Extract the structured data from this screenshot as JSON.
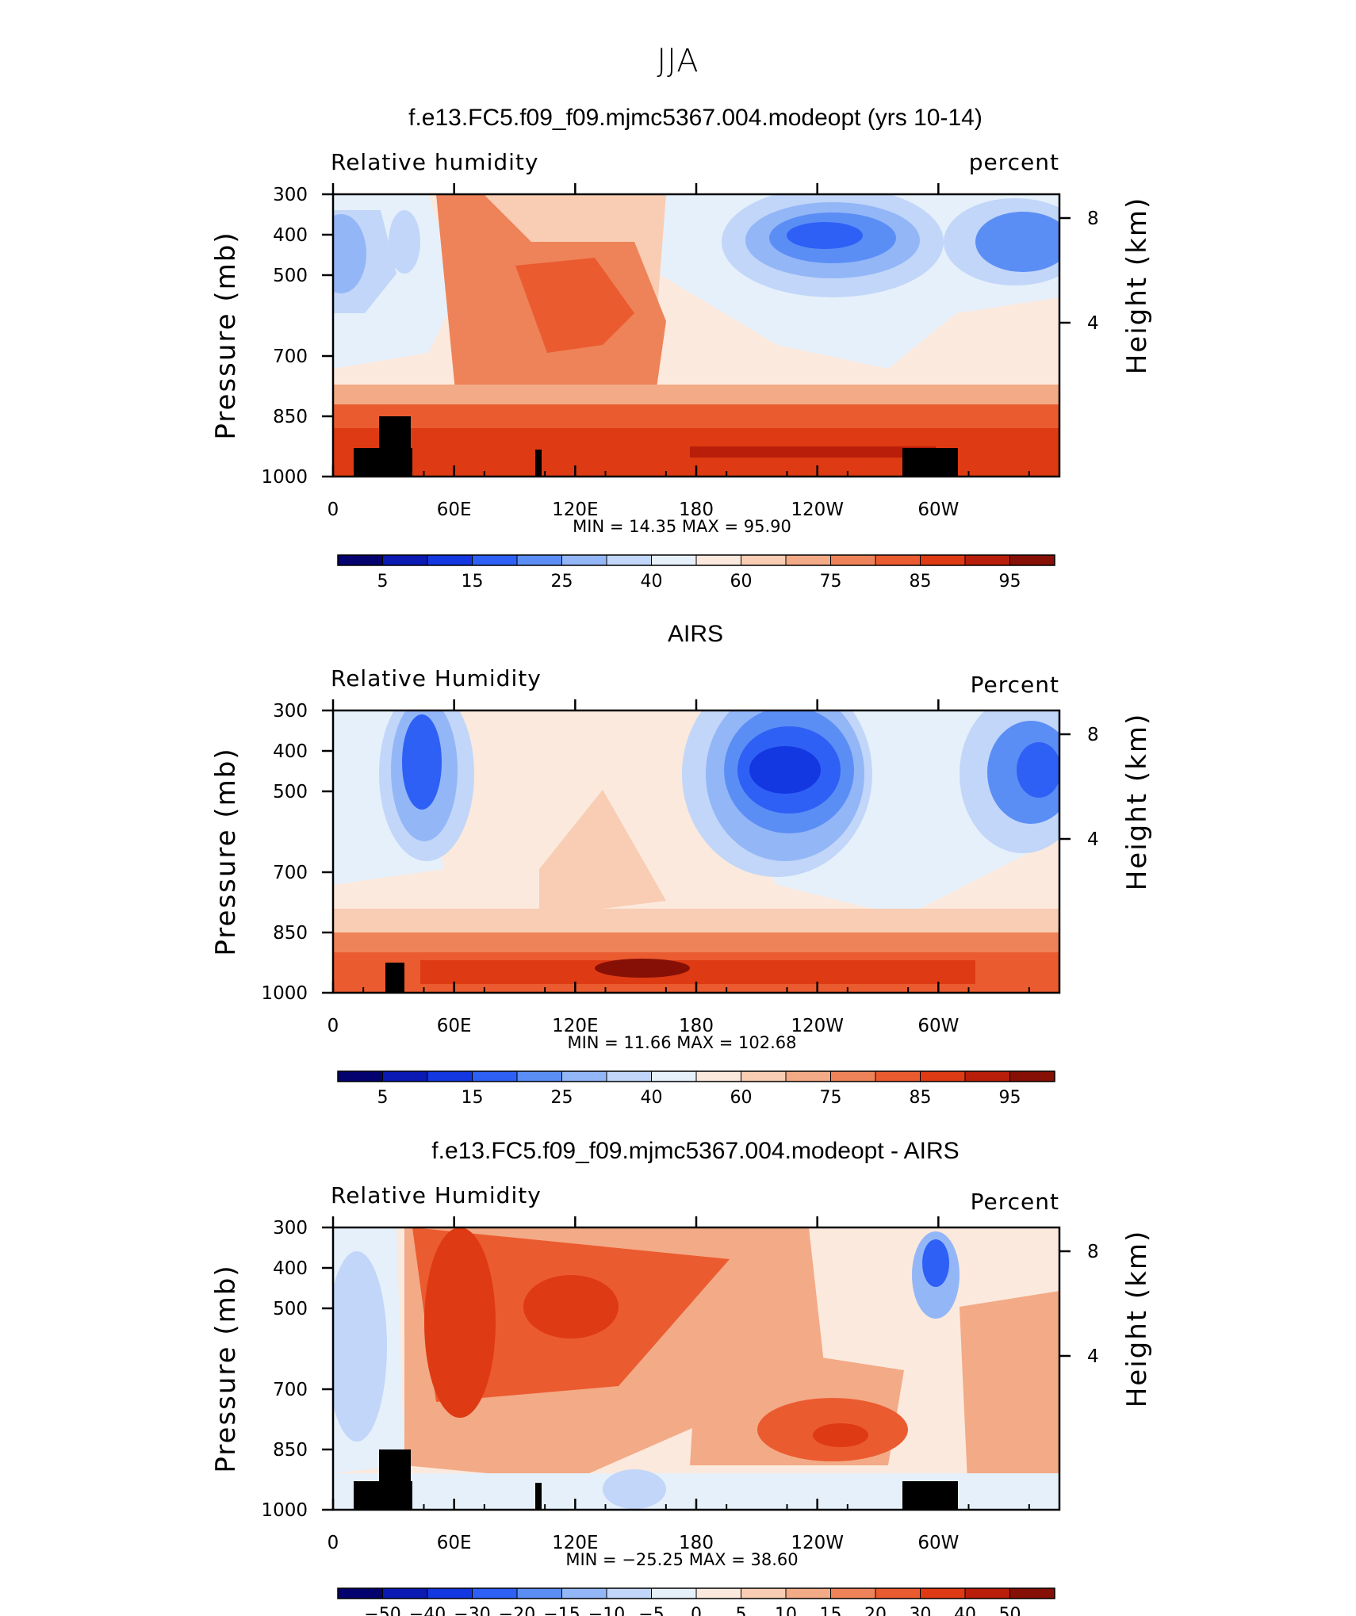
{
  "figure_title": "JJA",
  "panels": [
    {
      "title": "f.e13.FC5.f09_f09.mjmc5367.004.modeopt (yrs 10-14)",
      "left_label": "Relative humidity",
      "right_label": "percent",
      "minmax": "MIN =   14.35   MAX =   95.90",
      "y_left_title": "Pressure (mb)",
      "y_right_title": "Height (km)"
    },
    {
      "title": "AIRS",
      "left_label": "Relative Humidity",
      "right_label": "Percent",
      "minmax": "MIN =   11.66   MAX = 102.68",
      "y_left_title": "Pressure (mb)",
      "y_right_title": "Height (km)"
    },
    {
      "title": "f.e13.FC5.f09_f09.mjmc5367.004.modeopt - AIRS",
      "left_label": "Relative Humidity",
      "right_label": "Percent",
      "minmax": "MIN =  −25.25   MAX =   38.60",
      "y_left_title": "Pressure (mb)",
      "y_right_title": "Height (km)"
    }
  ],
  "chart_data": [
    {
      "type": "heatmap",
      "title": "f.e13.FC5.f09_f09.mjmc5367.004.modeopt (yrs 10-14)",
      "x_ticks": [
        "0",
        "60E",
        "120E",
        "180",
        "120W",
        "60W"
      ],
      "y_ticks_pressure": [
        "300",
        "400",
        "500",
        "700",
        "850",
        "1000"
      ],
      "y_ticks_height": [
        "8",
        "4"
      ],
      "xlim": [
        0,
        360
      ],
      "ylim": [
        1000,
        300
      ],
      "colorbar_labels": [
        "5",
        "15",
        "25",
        "40",
        "60",
        "75",
        "85",
        "95"
      ],
      "colorbar_levels": [
        5,
        10,
        15,
        20,
        25,
        30,
        40,
        50,
        60,
        65,
        70,
        75,
        80,
        85,
        90,
        95
      ],
      "colors": [
        "#03026f",
        "#0a1ab3",
        "#1337e0",
        "#2e60f5",
        "#5b8ef5",
        "#93b6f7",
        "#c1d6f8",
        "#e6f0fb",
        "#fbe9dd",
        "#f8cdb3",
        "#f3aa86",
        "#ee8359",
        "#eb5b30",
        "#de3a13",
        "#b81e0a",
        "#861005"
      ],
      "min": 14.35,
      "max": 95.9
    },
    {
      "type": "heatmap",
      "title": "AIRS",
      "x_ticks": [
        "0",
        "60E",
        "120E",
        "180",
        "120W",
        "60W"
      ],
      "y_ticks_pressure": [
        "300",
        "400",
        "500",
        "700",
        "850",
        "1000"
      ],
      "y_ticks_height": [
        "8",
        "4"
      ],
      "xlim": [
        0,
        360
      ],
      "ylim": [
        1000,
        300
      ],
      "colorbar_labels": [
        "5",
        "15",
        "25",
        "40",
        "60",
        "75",
        "85",
        "95"
      ],
      "colorbar_levels": [
        5,
        10,
        15,
        20,
        25,
        30,
        40,
        50,
        60,
        65,
        70,
        75,
        80,
        85,
        90,
        95
      ],
      "colors": [
        "#03026f",
        "#0a1ab3",
        "#1337e0",
        "#2e60f5",
        "#5b8ef5",
        "#93b6f7",
        "#c1d6f8",
        "#e6f0fb",
        "#fbe9dd",
        "#f8cdb3",
        "#f3aa86",
        "#ee8359",
        "#eb5b30",
        "#de3a13",
        "#b81e0a",
        "#861005"
      ],
      "min": 11.66,
      "max": 102.68
    },
    {
      "type": "heatmap",
      "title": "f.e13.FC5.f09_f09.mjmc5367.004.modeopt - AIRS",
      "x_ticks": [
        "0",
        "60E",
        "120E",
        "180",
        "120W",
        "60W"
      ],
      "y_ticks_pressure": [
        "300",
        "400",
        "500",
        "700",
        "850",
        "1000"
      ],
      "y_ticks_height": [
        "8",
        "4"
      ],
      "xlim": [
        0,
        360
      ],
      "ylim": [
        1000,
        300
      ],
      "colorbar_labels": [
        "−50",
        "−40",
        "−30",
        "−20",
        "−15",
        "−10",
        "−5",
        "0",
        "5",
        "10",
        "15",
        "20",
        "30",
        "40",
        "50"
      ],
      "colors": [
        "#03026f",
        "#0a1ab3",
        "#1337e0",
        "#2e60f5",
        "#5b8ef5",
        "#93b6f7",
        "#c1d6f8",
        "#e6f0fb",
        "#fbe9dd",
        "#f8cdb3",
        "#f3aa86",
        "#ee8359",
        "#eb5b30",
        "#de3a13",
        "#b81e0a",
        "#861005"
      ],
      "min": -25.25,
      "max": 38.6
    }
  ]
}
